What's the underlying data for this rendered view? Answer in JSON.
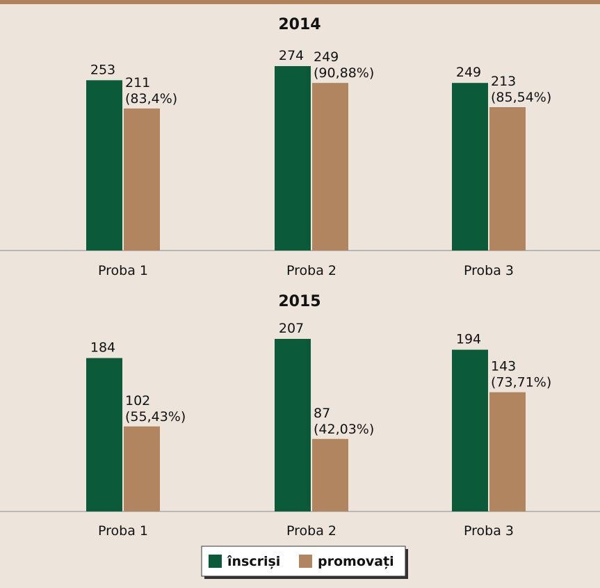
{
  "legend": [
    {
      "name": "înscriși",
      "color": "#0b5b3a"
    },
    {
      "name": "promovați",
      "color": "#b08560"
    }
  ],
  "chart_data": [
    {
      "type": "bar",
      "title": "2014",
      "categories": [
        "Proba 1",
        "Proba 2",
        "Proba 3"
      ],
      "series": [
        {
          "values": [
            253,
            274,
            249
          ]
        },
        {
          "values": [
            211,
            249,
            213
          ],
          "value_labels": [
            "211 (83,4%)",
            "249 (90,88%)",
            "213 (85,54%)"
          ]
        }
      ]
    },
    {
      "type": "bar",
      "title": "2015",
      "categories": [
        "Proba 1",
        "Proba 2",
        "Proba 3"
      ],
      "series": [
        {
          "values": [
            184,
            207,
            194
          ]
        },
        {
          "values": [
            102,
            87,
            143
          ],
          "value_labels": [
            "102 (55,43%)",
            "87 (42,03%)",
            "143 (73,71%)"
          ]
        }
      ]
    }
  ]
}
